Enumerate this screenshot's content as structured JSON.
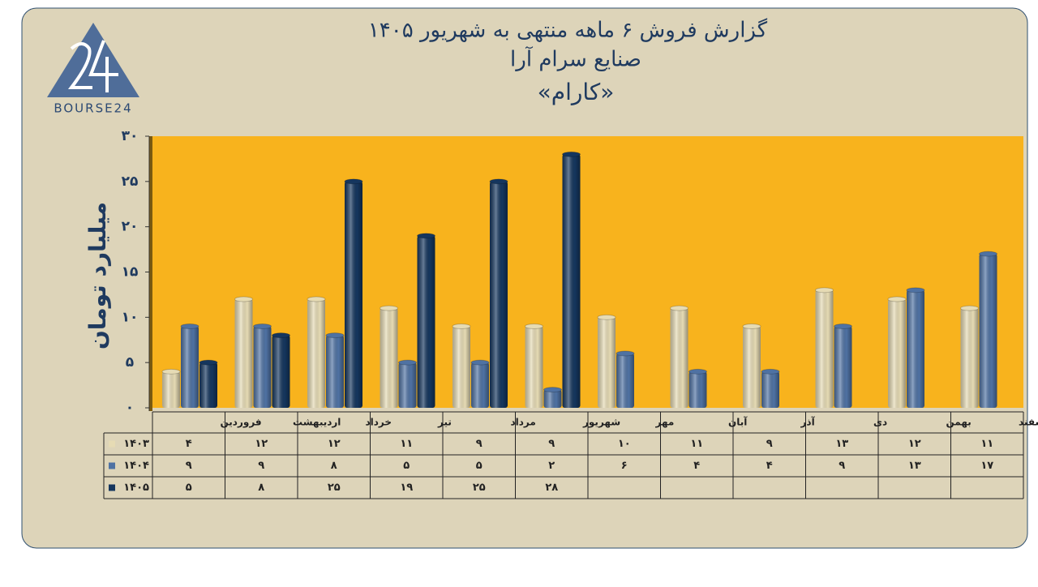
{
  "logo": "BOURSE24",
  "chart_data": {
    "type": "bar",
    "title": "گزارش  فروش ۶ ماهه منتهی به شهریور ۱۴۰۵",
    "subtitle": "صنایع سرام آرا",
    "subtitle2": "«کارام»",
    "y_label": "میلیارد تومان",
    "categories": [
      "فروردین",
      "اردیبهشت",
      "خرداد",
      "تیر",
      "مرداد",
      "شهریور",
      "مهر",
      "آبان",
      "آذر",
      "دی",
      "بهمن",
      "اسفند"
    ],
    "series": [
      {
        "name": "۱۴۰۳",
        "color": "#e6dbb4",
        "values": [
          4,
          12,
          12,
          11,
          9,
          9,
          10,
          11,
          9,
          13,
          12,
          11
        ],
        "value_labels": [
          "۴",
          "۱۲",
          "۱۲",
          "۱۱",
          "۹",
          "۹",
          "۱۰",
          "۱۱",
          "۹",
          "۱۳",
          "۱۲",
          "۱۱"
        ]
      },
      {
        "name": "۱۴۰۴",
        "color": "#4f72a3",
        "values": [
          9,
          9,
          8,
          5,
          5,
          2,
          6,
          4,
          4,
          9,
          13,
          17
        ],
        "value_labels": [
          "۹",
          "۹",
          "۸",
          "۵",
          "۵",
          "۲",
          "۶",
          "۴",
          "۴",
          "۹",
          "۱۳",
          "۱۷"
        ]
      },
      {
        "name": "۱۴۰۵",
        "color": "#15365e",
        "values": [
          5,
          8,
          25,
          19,
          25,
          28,
          null,
          null,
          null,
          null,
          null,
          null
        ],
        "value_labels": [
          "۵",
          "۸",
          "۲۵",
          "۱۹",
          "۲۵",
          "۲۸",
          null,
          null,
          null,
          null,
          null,
          null
        ]
      }
    ],
    "ylim": [
      0,
      30
    ],
    "yticks": [
      {
        "value": 0,
        "label": "۰"
      },
      {
        "value": 5,
        "label": "۵"
      },
      {
        "value": 10,
        "label": "۱۰"
      },
      {
        "value": 15,
        "label": "۱۵"
      },
      {
        "value": 20,
        "label": "۲۰"
      },
      {
        "value": 25,
        "label": "۲۵"
      },
      {
        "value": 30,
        "label": "۳۰"
      }
    ],
    "grid": false,
    "plot_color": "#f8b31d"
  }
}
